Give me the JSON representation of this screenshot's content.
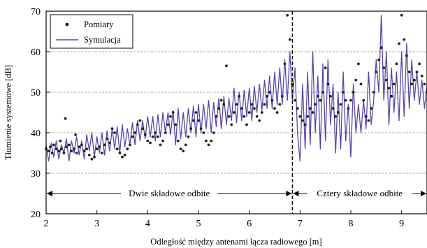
{
  "chart_data": {
    "type": "scatter",
    "xlabel": "Odległość między antenami łącza radiowego [m]",
    "ylabel": "Tłumienie systemowe [dB]",
    "xlim": [
      2,
      9.5
    ],
    "ylim": [
      20,
      70
    ],
    "x_ticks": [
      2,
      3,
      4,
      5,
      6,
      7,
      8,
      9
    ],
    "y_ticks": [
      20,
      30,
      40,
      50,
      60,
      70
    ],
    "grid": "horizontal dashed",
    "legend_position": "top-left",
    "legend": [
      {
        "label": "Pomiary",
        "marker": "dot",
        "color": "#222222"
      },
      {
        "label": "Symulacja",
        "marker": "line",
        "color": "#5547a8"
      }
    ],
    "divider": {
      "x": 6.85,
      "style": "dashed"
    },
    "annotations": [
      {
        "text": "Dwie składowe odbite",
        "x_range": [
          2,
          6.85
        ],
        "y": 25
      },
      {
        "text": "Cztery składowe odbite",
        "x_range": [
          6.85,
          9.5
        ],
        "y": 25
      }
    ],
    "series": [
      {
        "name": "Symulacja",
        "type": "line",
        "color": "#5547a8",
        "points": [
          [
            2.0,
            37
          ],
          [
            2.05,
            33
          ],
          [
            2.1,
            37.5
          ],
          [
            2.15,
            34
          ],
          [
            2.2,
            38
          ],
          [
            2.25,
            33.5
          ],
          [
            2.3,
            37
          ],
          [
            2.35,
            35
          ],
          [
            2.4,
            38.5
          ],
          [
            2.45,
            33
          ],
          [
            2.5,
            38
          ],
          [
            2.55,
            35
          ],
          [
            2.6,
            39
          ],
          [
            2.65,
            34.5
          ],
          [
            2.7,
            38
          ],
          [
            2.75,
            33.5
          ],
          [
            2.8,
            39.5
          ],
          [
            2.85,
            35.5
          ],
          [
            2.9,
            40
          ],
          [
            2.95,
            34
          ],
          [
            3.0,
            39
          ],
          [
            3.05,
            35
          ],
          [
            3.1,
            40
          ],
          [
            3.15,
            34.5
          ],
          [
            3.2,
            40.5
          ],
          [
            3.25,
            35.5
          ],
          [
            3.3,
            41
          ],
          [
            3.35,
            36
          ],
          [
            3.4,
            41.5
          ],
          [
            3.45,
            35
          ],
          [
            3.5,
            42
          ],
          [
            3.55,
            36.5
          ],
          [
            3.6,
            41
          ],
          [
            3.65,
            37
          ],
          [
            3.7,
            42.5
          ],
          [
            3.75,
            37
          ],
          [
            3.8,
            43
          ],
          [
            3.85,
            38
          ],
          [
            3.9,
            43
          ],
          [
            3.95,
            38.5
          ],
          [
            4.0,
            44
          ],
          [
            4.05,
            39
          ],
          [
            4.1,
            44
          ],
          [
            4.15,
            38
          ],
          [
            4.2,
            44.5
          ],
          [
            4.25,
            39
          ],
          [
            4.3,
            45
          ],
          [
            4.35,
            40
          ],
          [
            4.4,
            45
          ],
          [
            4.45,
            39.5
          ],
          [
            4.5,
            45.5
          ],
          [
            4.55,
            37
          ],
          [
            4.6,
            46
          ],
          [
            4.65,
            38.5
          ],
          [
            4.7,
            45
          ],
          [
            4.75,
            39
          ],
          [
            4.8,
            46
          ],
          [
            4.85,
            40
          ],
          [
            4.9,
            46.5
          ],
          [
            4.95,
            39
          ],
          [
            5.0,
            47
          ],
          [
            5.05,
            40
          ],
          [
            5.1,
            47
          ],
          [
            5.15,
            41
          ],
          [
            5.2,
            48
          ],
          [
            5.25,
            40
          ],
          [
            5.3,
            47.5
          ],
          [
            5.35,
            41.5
          ],
          [
            5.4,
            48.5
          ],
          [
            5.45,
            41
          ],
          [
            5.5,
            49
          ],
          [
            5.55,
            42
          ],
          [
            5.6,
            48.5
          ],
          [
            5.65,
            43
          ],
          [
            5.7,
            51
          ],
          [
            5.75,
            42.5
          ],
          [
            5.8,
            50
          ],
          [
            5.85,
            43
          ],
          [
            5.9,
            50.5
          ],
          [
            5.95,
            44
          ],
          [
            6.0,
            51
          ],
          [
            6.05,
            43
          ],
          [
            6.1,
            51.5
          ],
          [
            6.15,
            45
          ],
          [
            6.2,
            52
          ],
          [
            6.25,
            45.5
          ],
          [
            6.3,
            53
          ],
          [
            6.35,
            46
          ],
          [
            6.4,
            54
          ],
          [
            6.45,
            46
          ],
          [
            6.5,
            55
          ],
          [
            6.55,
            47
          ],
          [
            6.6,
            56
          ],
          [
            6.65,
            47
          ],
          [
            6.7,
            58
          ],
          [
            6.75,
            48
          ],
          [
            6.8,
            60
          ],
          [
            6.85,
            48
          ],
          [
            6.9,
            56
          ],
          [
            6.95,
            40
          ],
          [
            7.0,
            33
          ],
          [
            7.05,
            52
          ],
          [
            7.1,
            36
          ],
          [
            7.15,
            55
          ],
          [
            7.2,
            37
          ],
          [
            7.25,
            60
          ],
          [
            7.3,
            40
          ],
          [
            7.35,
            54
          ],
          [
            7.4,
            36
          ],
          [
            7.45,
            57
          ],
          [
            7.5,
            38
          ],
          [
            7.55,
            58
          ],
          [
            7.6,
            42
          ],
          [
            7.65,
            52
          ],
          [
            7.7,
            35
          ],
          [
            7.75,
            50
          ],
          [
            7.8,
            36
          ],
          [
            7.85,
            55
          ],
          [
            7.9,
            38
          ],
          [
            7.95,
            47
          ],
          [
            8.0,
            34
          ],
          [
            8.05,
            52
          ],
          [
            8.1,
            40
          ],
          [
            8.15,
            47
          ],
          [
            8.2,
            40
          ],
          [
            8.25,
            48
          ],
          [
            8.3,
            41
          ],
          [
            8.35,
            55
          ],
          [
            8.4,
            42
          ],
          [
            8.45,
            48
          ],
          [
            8.5,
            58
          ],
          [
            8.55,
            50
          ],
          [
            8.6,
            69
          ],
          [
            8.65,
            48
          ],
          [
            8.7,
            60
          ],
          [
            8.75,
            42
          ],
          [
            8.8,
            56
          ],
          [
            8.85,
            45
          ],
          [
            8.9,
            55
          ],
          [
            8.95,
            43
          ],
          [
            9.0,
            60
          ],
          [
            9.05,
            44
          ],
          [
            9.1,
            62
          ],
          [
            9.15,
            46
          ],
          [
            9.2,
            58
          ],
          [
            9.25,
            48
          ],
          [
            9.3,
            55
          ],
          [
            9.35,
            47
          ],
          [
            9.4,
            53
          ],
          [
            9.45,
            46
          ],
          [
            9.5,
            52
          ]
        ]
      },
      {
        "name": "Pomiary",
        "type": "scatter",
        "color": "#222222",
        "points": [
          [
            2.0,
            36
          ],
          [
            2.05,
            35.5
          ],
          [
            2.08,
            36.5
          ],
          [
            2.12,
            35
          ],
          [
            2.15,
            37
          ],
          [
            2.2,
            36
          ],
          [
            2.25,
            35.5
          ],
          [
            2.28,
            38
          ],
          [
            2.3,
            36
          ],
          [
            2.35,
            35
          ],
          [
            2.38,
            43.5
          ],
          [
            2.4,
            36.5
          ],
          [
            2.45,
            37
          ],
          [
            2.5,
            35.5
          ],
          [
            2.55,
            36
          ],
          [
            2.58,
            39.5
          ],
          [
            2.6,
            35
          ],
          [
            2.65,
            36.5
          ],
          [
            2.7,
            37
          ],
          [
            2.75,
            35.5
          ],
          [
            2.8,
            36
          ],
          [
            2.85,
            34.5
          ],
          [
            2.9,
            33.5
          ],
          [
            2.95,
            34
          ],
          [
            3.0,
            36
          ],
          [
            3.05,
            36.5
          ],
          [
            3.1,
            35
          ],
          [
            3.15,
            37
          ],
          [
            3.2,
            38.5
          ],
          [
            3.25,
            37.5
          ],
          [
            3.3,
            41
          ],
          [
            3.35,
            40
          ],
          [
            3.4,
            36
          ],
          [
            3.45,
            35
          ],
          [
            3.5,
            34
          ],
          [
            3.55,
            34.5
          ],
          [
            3.6,
            36
          ],
          [
            3.65,
            37
          ],
          [
            3.7,
            39
          ],
          [
            3.75,
            40
          ],
          [
            3.8,
            42
          ],
          [
            3.85,
            43
          ],
          [
            3.9,
            41
          ],
          [
            3.95,
            39.5
          ],
          [
            4.0,
            38
          ],
          [
            4.05,
            37.5
          ],
          [
            4.1,
            39
          ],
          [
            4.15,
            40
          ],
          [
            4.2,
            39
          ],
          [
            4.25,
            37
          ],
          [
            4.3,
            38
          ],
          [
            4.35,
            40
          ],
          [
            4.4,
            42
          ],
          [
            4.45,
            44
          ],
          [
            4.5,
            45
          ],
          [
            4.55,
            42
          ],
          [
            4.6,
            38
          ],
          [
            4.65,
            36
          ],
          [
            4.7,
            35.5
          ],
          [
            4.75,
            37
          ],
          [
            4.8,
            39
          ],
          [
            4.85,
            41
          ],
          [
            4.9,
            43
          ],
          [
            4.95,
            45
          ],
          [
            5.0,
            43
          ],
          [
            5.05,
            41
          ],
          [
            5.1,
            40
          ],
          [
            5.15,
            38
          ],
          [
            5.2,
            37
          ],
          [
            5.25,
            38
          ],
          [
            5.3,
            40
          ],
          [
            5.35,
            44
          ],
          [
            5.4,
            46
          ],
          [
            5.45,
            48
          ],
          [
            5.5,
            47
          ],
          [
            5.55,
            56.5
          ],
          [
            5.6,
            44
          ],
          [
            5.65,
            42
          ],
          [
            5.7,
            45
          ],
          [
            5.75,
            47
          ],
          [
            5.8,
            49
          ],
          [
            5.85,
            46
          ],
          [
            5.9,
            44
          ],
          [
            5.95,
            42
          ],
          [
            6.0,
            45
          ],
          [
            6.05,
            47
          ],
          [
            6.1,
            46
          ],
          [
            6.15,
            44
          ],
          [
            6.2,
            43
          ],
          [
            6.25,
            45
          ],
          [
            6.3,
            47
          ],
          [
            6.35,
            49
          ],
          [
            6.4,
            50
          ],
          [
            6.45,
            48
          ],
          [
            6.5,
            46
          ],
          [
            6.55,
            45
          ],
          [
            6.6,
            47
          ],
          [
            6.65,
            49
          ],
          [
            6.7,
            57
          ],
          [
            6.75,
            69
          ],
          [
            6.8,
            63
          ],
          [
            6.85,
            52
          ],
          [
            6.9,
            48
          ],
          [
            6.95,
            46
          ],
          [
            7.0,
            44
          ],
          [
            7.05,
            43
          ],
          [
            7.1,
            42
          ],
          [
            7.15,
            44
          ],
          [
            7.2,
            46
          ],
          [
            7.25,
            45
          ],
          [
            7.3,
            47
          ],
          [
            7.35,
            49
          ],
          [
            7.4,
            48
          ],
          [
            7.45,
            50
          ],
          [
            7.5,
            56
          ],
          [
            7.55,
            52
          ],
          [
            7.6,
            49
          ],
          [
            7.65,
            46
          ],
          [
            7.7,
            44
          ],
          [
            7.75,
            45
          ],
          [
            7.8,
            47
          ],
          [
            7.85,
            50
          ],
          [
            7.9,
            48
          ],
          [
            7.95,
            46
          ],
          [
            8.0,
            48
          ],
          [
            8.05,
            50
          ],
          [
            8.1,
            53
          ],
          [
            8.15,
            57
          ],
          [
            8.2,
            52
          ],
          [
            8.25,
            48
          ],
          [
            8.3,
            44
          ],
          [
            8.35,
            43
          ],
          [
            8.4,
            46
          ],
          [
            8.45,
            50
          ],
          [
            8.5,
            55
          ],
          [
            8.55,
            58
          ],
          [
            8.6,
            61
          ],
          [
            8.65,
            56
          ],
          [
            8.7,
            53
          ],
          [
            8.75,
            51
          ],
          [
            8.8,
            49
          ],
          [
            8.85,
            52
          ],
          [
            8.9,
            57
          ],
          [
            8.95,
            62
          ],
          [
            9.0,
            69
          ],
          [
            9.05,
            63
          ],
          [
            9.1,
            59
          ],
          [
            9.15,
            55
          ],
          [
            9.2,
            52
          ],
          [
            9.25,
            53
          ],
          [
            9.3,
            55
          ],
          [
            9.35,
            57
          ],
          [
            9.4,
            54
          ],
          [
            9.45,
            52
          ],
          [
            9.5,
            50
          ]
        ]
      }
    ]
  }
}
